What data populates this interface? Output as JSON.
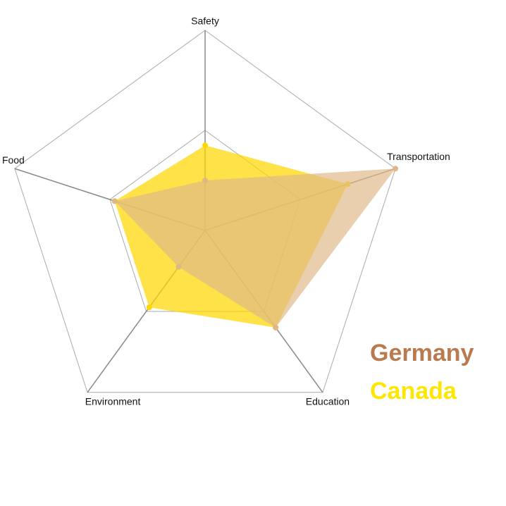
{
  "chart_data": {
    "type": "radar",
    "axes": [
      "Safety",
      "Transportation",
      "Education",
      "Environment",
      "Food"
    ],
    "max": 4,
    "levels": 2,
    "series": [
      {
        "name": "Canada",
        "color": "#ffd700",
        "values": [
          1.7,
          3.0,
          2.4,
          1.9,
          1.9
        ]
      },
      {
        "name": "Germany",
        "color": "#deb887",
        "values": [
          1.0,
          4.0,
          2.4,
          0.9,
          1.9
        ]
      }
    ]
  },
  "legend": [
    {
      "label": "Germany",
      "color": "#b97a50"
    },
    {
      "label": "Canada",
      "color": "#ffe600"
    }
  ]
}
